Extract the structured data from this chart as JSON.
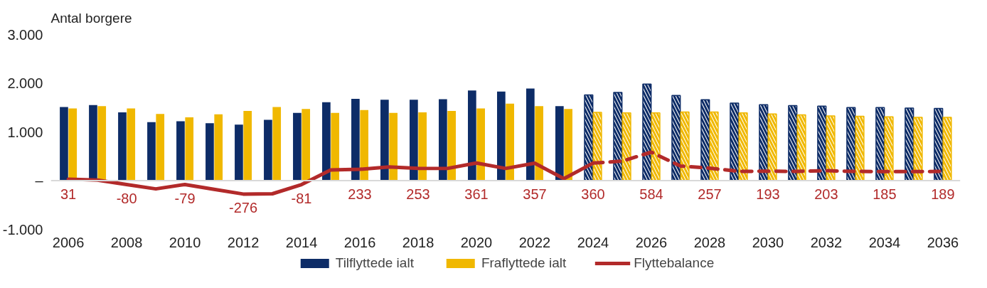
{
  "chart_data": {
    "type": "bar",
    "ylabel": "Antal borgere",
    "categories": [
      "2006",
      null,
      "2008",
      null,
      "2010",
      null,
      "2012",
      null,
      "2014",
      null,
      "2016",
      null,
      "2018",
      null,
      "2020",
      null,
      "2022",
      null,
      "2024",
      null,
      "2026",
      null,
      "2028",
      null,
      "2030",
      null,
      "2032",
      null,
      "2034",
      null,
      "2036"
    ],
    "ylim": [
      -1000,
      3000
    ],
    "yticks": [
      {
        "value": -1000,
        "label": "-1.000"
      },
      {
        "value": 0,
        "label": "–"
      },
      {
        "value": 1000,
        "label": "1.000"
      },
      {
        "value": 2000,
        "label": "2.000"
      },
      {
        "value": 3000,
        "label": "3.000"
      }
    ],
    "grid": false,
    "legend": "bottom",
    "ref_lines": [
      {
        "axis": "y",
        "value": 0,
        "color": "#d9d9d9"
      }
    ],
    "series": [
      {
        "name": "Tilflyttede ialt",
        "color": "#0d2c67",
        "values": [
          1510,
          1550,
          1400,
          1200,
          1220,
          1180,
          1150,
          1250,
          1390,
          1610,
          1680,
          1660,
          1660,
          1670,
          1850,
          1830,
          1890,
          1530,
          null,
          null,
          null,
          null,
          null,
          null,
          null,
          null,
          null,
          null,
          null,
          null,
          null
        ]
      },
      {
        "name": "Fraflyttede ialt",
        "color": "#f0b800",
        "values": [
          1480,
          1530,
          1480,
          1370,
          1300,
          1360,
          1430,
          1510,
          1470,
          1390,
          1450,
          1390,
          1400,
          1430,
          1480,
          1580,
          1530,
          1470,
          null,
          null,
          null,
          null,
          null,
          null,
          null,
          null,
          null,
          null,
          null,
          null,
          null
        ]
      },
      {
        "color": "#0d2c67",
        "line_style": "dashed",
        "values": [
          null,
          null,
          null,
          null,
          null,
          null,
          null,
          null,
          null,
          null,
          null,
          null,
          null,
          null,
          null,
          null,
          null,
          null,
          1760,
          1810,
          1980,
          1750,
          1660,
          1590,
          1560,
          1540,
          1530,
          1500,
          1500,
          1490,
          1480
        ]
      },
      {
        "color": "#f0b800",
        "line_style": "dashed",
        "values": [
          null,
          null,
          null,
          null,
          null,
          null,
          null,
          null,
          null,
          null,
          null,
          null,
          null,
          null,
          null,
          null,
          null,
          null,
          1400,
          1390,
          1390,
          1410,
          1410,
          1390,
          1370,
          1350,
          1330,
          1320,
          1310,
          1300,
          1300
        ]
      },
      {
        "name": "Flyttebalance",
        "type": "line",
        "color": "#b22a2a",
        "line_style": "solid",
        "values": [
          31,
          10,
          -80,
          -170,
          -79,
          -180,
          -276,
          -270,
          -81,
          220,
          233,
          280,
          253,
          250,
          361,
          250,
          357,
          40,
          360,
          null,
          null,
          null,
          null,
          null,
          null,
          null,
          null,
          null,
          null,
          null,
          null
        ],
        "value_labels": [
          "31",
          null,
          "-80",
          null,
          "-79",
          null,
          "-276",
          null,
          "-81",
          null,
          "233",
          null,
          "253",
          null,
          "361",
          null,
          "357",
          null,
          "360",
          null,
          null,
          null,
          null,
          null,
          null,
          null,
          null,
          null,
          null,
          null,
          null
        ]
      },
      {
        "type": "line",
        "color": "#b22a2a",
        "line_style": "dashed",
        "values": [
          null,
          null,
          null,
          null,
          null,
          null,
          null,
          null,
          null,
          null,
          null,
          null,
          null,
          null,
          null,
          null,
          null,
          null,
          360,
          400,
          584,
          300,
          257,
          190,
          193,
          190,
          203,
          190,
          185,
          185,
          189
        ],
        "value_labels": [
          null,
          null,
          null,
          null,
          null,
          null,
          null,
          null,
          null,
          null,
          null,
          null,
          null,
          null,
          null,
          null,
          null,
          null,
          null,
          null,
          "584",
          null,
          "257",
          null,
          "193",
          null,
          "203",
          null,
          "185",
          null,
          "189"
        ]
      }
    ]
  }
}
